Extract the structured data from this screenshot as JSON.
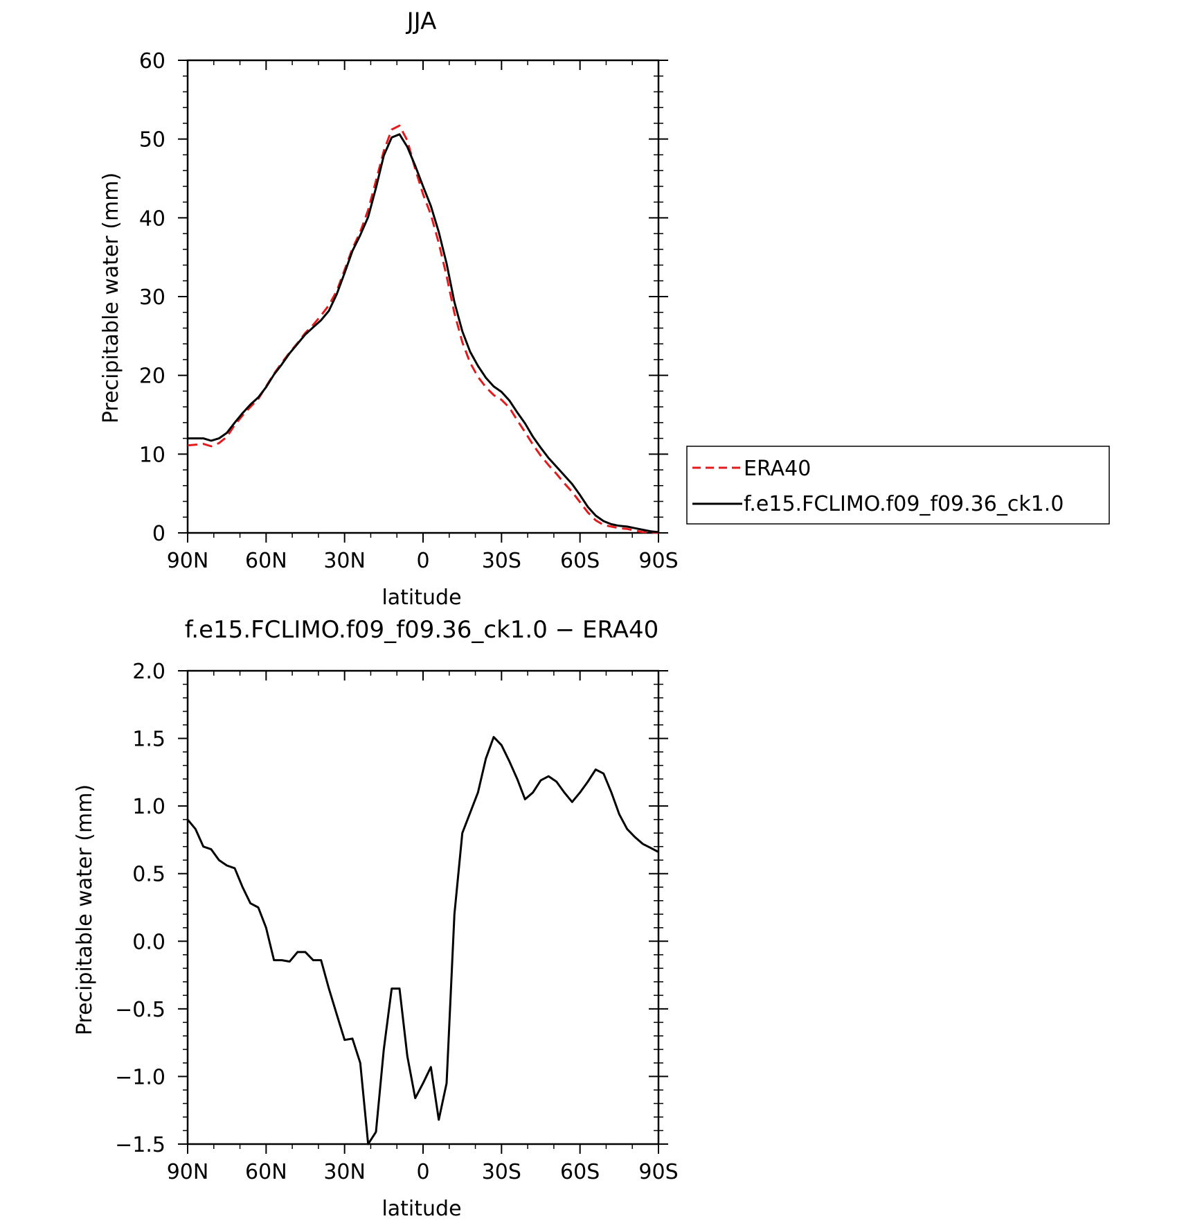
{
  "chart_data": [
    {
      "type": "line",
      "title": "JJA",
      "xlabel": "latitude",
      "ylabel": "Precipitable water (mm)",
      "xlim": [
        90,
        -90
      ],
      "ylim": [
        0,
        60
      ],
      "x_ticks": [
        90,
        60,
        30,
        0,
        -30,
        -60,
        -90
      ],
      "x_tick_labels": [
        "90N",
        "60N",
        "30N",
        "0",
        "30S",
        "60S",
        "90S"
      ],
      "y_ticks": [
        0,
        10,
        20,
        30,
        40,
        50,
        60
      ],
      "y_tick_labels": [
        "0",
        "10",
        "20",
        "30",
        "40",
        "50",
        "60"
      ],
      "legend": {
        "position": "right"
      },
      "series": [
        {
          "name": "ERA40",
          "color": "#e41a1c",
          "dash": "dashed",
          "x": [
            90,
            87,
            84,
            81,
            78,
            75,
            72,
            69,
            66,
            63,
            60,
            57,
            54,
            51,
            48,
            45,
            42,
            39,
            36,
            33,
            30,
            27,
            24,
            21,
            18,
            15,
            12,
            9,
            6,
            3,
            0,
            -3,
            -6,
            -9,
            -12,
            -15,
            -18,
            -21,
            -24,
            -27,
            -30,
            -33,
            -36,
            -39,
            -42,
            -45,
            -48,
            -51,
            -54,
            -57,
            -60,
            -63,
            -66,
            -69,
            -72,
            -75,
            -78,
            -81,
            -84,
            -87,
            -90
          ],
          "y": [
            11.1,
            11.2,
            11.3,
            11.0,
            11.4,
            12.2,
            13.7,
            14.9,
            16.0,
            17.0,
            18.6,
            20.2,
            21.6,
            22.9,
            24.1,
            25.4,
            26.4,
            27.6,
            28.9,
            30.7,
            33.4,
            36.1,
            38.2,
            41.0,
            44.7,
            48.5,
            51.2,
            51.7,
            49.8,
            46.2,
            43.0,
            40.4,
            36.8,
            32.6,
            27.9,
            24.2,
            21.6,
            19.8,
            18.5,
            17.5,
            16.9,
            15.9,
            14.3,
            12.8,
            11.2,
            9.8,
            8.6,
            7.5,
            6.3,
            5.2,
            3.9,
            2.6,
            1.6,
            1.0,
            0.8,
            0.6,
            0.5,
            0.3,
            0.1,
            0.1,
            0.0
          ]
        },
        {
          "name": "f.e15.FCLIMO.f09_f09.36_ck1.0",
          "color": "#000000",
          "dash": "solid",
          "x": [
            90,
            87,
            84,
            81,
            78,
            75,
            72,
            69,
            66,
            63,
            60,
            57,
            54,
            51,
            48,
            45,
            42,
            39,
            36,
            33,
            30,
            27,
            24,
            21,
            18,
            15,
            12,
            9,
            6,
            3,
            0,
            -3,
            -6,
            -9,
            -12,
            -15,
            -18,
            -21,
            -24,
            -27,
            -30,
            -33,
            -36,
            -39,
            -42,
            -45,
            -48,
            -51,
            -54,
            -57,
            -60,
            -63,
            -66,
            -69,
            -72,
            -75,
            -78,
            -81,
            -84,
            -87,
            -90
          ],
          "y": [
            12.0,
            12.0,
            12.0,
            11.7,
            12.0,
            12.7,
            14.0,
            15.2,
            16.3,
            17.2,
            18.5,
            20.1,
            21.4,
            22.8,
            24.0,
            25.2,
            26.1,
            27.0,
            28.2,
            30.3,
            33.0,
            35.8,
            37.8,
            40.1,
            43.8,
            47.9,
            50.2,
            50.6,
            49.0,
            46.6,
            44.0,
            41.5,
            38.2,
            34.2,
            29.3,
            25.6,
            23.0,
            21.2,
            19.7,
            18.6,
            17.9,
            16.8,
            15.3,
            13.9,
            12.2,
            10.8,
            9.5,
            8.4,
            7.3,
            6.2,
            4.8,
            3.3,
            2.2,
            1.5,
            1.1,
            0.9,
            0.8,
            0.6,
            0.4,
            0.2,
            0.1
          ]
        }
      ]
    },
    {
      "type": "line",
      "title": "f.e15.FCLIMO.f09_f09.36_ck1.0 − ERA40",
      "xlabel": "latitude",
      "ylabel": "Precipitable water (mm)",
      "xlim": [
        90,
        -90
      ],
      "ylim": [
        -1.5,
        2.0
      ],
      "x_ticks": [
        90,
        60,
        30,
        0,
        -30,
        -60,
        -90
      ],
      "x_tick_labels": [
        "90N",
        "60N",
        "30N",
        "0",
        "30S",
        "60S",
        "90S"
      ],
      "y_ticks": [
        -1.5,
        -1.0,
        -0.5,
        0.0,
        0.5,
        1.0,
        1.5,
        2.0
      ],
      "y_tick_labels": [
        "−1.5",
        "−1.0",
        "−0.5",
        "0.0",
        "0.5",
        "1.0",
        "1.5",
        "2.0"
      ],
      "series": [
        {
          "color": "#000000",
          "dash": "solid",
          "x": [
            90,
            87,
            84,
            81,
            78,
            75,
            72,
            69,
            66,
            63,
            60,
            57,
            54,
            51,
            48,
            45,
            42,
            39,
            36,
            33,
            30,
            27,
            24,
            21,
            18,
            15,
            12,
            9,
            6,
            3,
            0,
            -3,
            -6,
            -9,
            -12,
            -15,
            -18,
            -21,
            -24,
            -27,
            -30,
            -33,
            -36,
            -39,
            -42,
            -45,
            -48,
            -51,
            -54,
            -57,
            -60,
            -63,
            -66,
            -69,
            -72,
            -75,
            -78,
            -81,
            -84,
            -87,
            -90
          ],
          "y": [
            0.9,
            0.83,
            0.7,
            0.68,
            0.6,
            0.56,
            0.54,
            0.4,
            0.28,
            0.25,
            0.1,
            -0.14,
            -0.14,
            -0.15,
            -0.08,
            -0.08,
            -0.14,
            -0.14,
            -0.35,
            -0.54,
            -0.73,
            -0.72,
            -0.9,
            -1.5,
            -1.41,
            -0.8,
            -0.35,
            -0.35,
            -0.85,
            -1.16,
            -1.05,
            -0.93,
            -1.32,
            -1.05,
            0.2,
            0.8,
            0.95,
            1.1,
            1.35,
            1.51,
            1.45,
            1.33,
            1.2,
            1.05,
            1.1,
            1.19,
            1.22,
            1.18,
            1.1,
            1.03,
            1.1,
            1.18,
            1.27,
            1.24,
            1.1,
            0.94,
            0.83,
            0.77,
            0.72,
            0.69,
            0.66
          ]
        }
      ]
    }
  ]
}
